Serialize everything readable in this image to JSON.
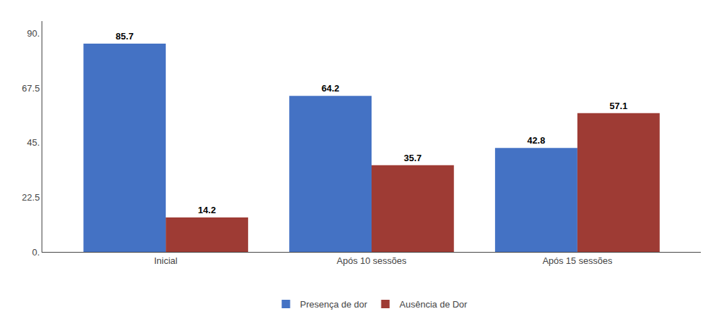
{
  "chart_data": {
    "type": "bar",
    "categories": [
      "Inicial",
      "Após 10 sessões",
      "Após 15 sessões"
    ],
    "series": [
      {
        "name": "Presença de dor",
        "color": "#4472C4",
        "values": [
          85.7,
          64.2,
          42.8
        ]
      },
      {
        "name": "Ausência de Dor",
        "color": "#9E3B34",
        "values": [
          14.2,
          35.7,
          57.1
        ]
      }
    ],
    "ylim": [
      0,
      95
    ],
    "yticks": [
      {
        "value": 0,
        "label": "0."
      },
      22.5,
      {
        "value": 45,
        "label": "45."
      },
      67.5,
      {
        "value": 90,
        "label": "90."
      }
    ],
    "grid": false,
    "legend": "bottom",
    "data_labels": true
  }
}
